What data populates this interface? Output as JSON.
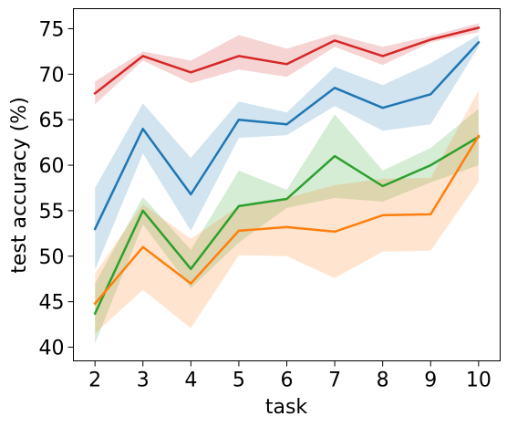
{
  "chart_data": {
    "type": "line",
    "title": "",
    "xlabel": "task",
    "ylabel": "test accuracy (%)",
    "x": [
      2,
      3,
      4,
      5,
      6,
      7,
      8,
      9,
      10
    ],
    "xlim": [
      1.55,
      10.45
    ],
    "ylim": [
      38.5,
      77.2
    ],
    "yticks": [
      40,
      45,
      50,
      55,
      60,
      65,
      70,
      75
    ],
    "grid": false,
    "legend": "none",
    "series": [
      {
        "color": "#d62728",
        "values": [
          67.9,
          72.0,
          70.2,
          72.0,
          71.1,
          73.7,
          72.0,
          73.8,
          75.1
        ],
        "lower": [
          66.7,
          71.5,
          69.0,
          70.5,
          69.7,
          73.0,
          71.0,
          73.5,
          74.6
        ],
        "upper": [
          69.2,
          72.5,
          71.5,
          74.3,
          72.8,
          74.4,
          73.0,
          74.2,
          75.6
        ]
      },
      {
        "color": "#1f77b4",
        "values": [
          53.0,
          64.0,
          56.8,
          65.0,
          64.5,
          68.5,
          66.3,
          67.8,
          73.5
        ],
        "lower": [
          48.5,
          61.3,
          52.8,
          63.0,
          63.3,
          66.5,
          63.8,
          64.5,
          73.0
        ],
        "upper": [
          57.5,
          66.8,
          60.8,
          67.0,
          65.8,
          70.8,
          68.8,
          71.2,
          74.3
        ]
      },
      {
        "color": "#2ca02c",
        "values": [
          43.7,
          55.0,
          48.6,
          55.5,
          56.3,
          61.0,
          57.7,
          60.0,
          63.1
        ],
        "lower": [
          40.4,
          53.5,
          46.5,
          51.5,
          55.3,
          56.4,
          56.0,
          58.1,
          60.0
        ],
        "upper": [
          47.0,
          56.5,
          50.7,
          59.4,
          57.3,
          65.6,
          59.4,
          61.9,
          66.2
        ]
      },
      {
        "color": "#ff7f0e",
        "values": [
          44.8,
          51.0,
          47.0,
          52.8,
          53.2,
          52.7,
          54.5,
          54.6,
          63.2
        ],
        "lower": [
          41.5,
          46.3,
          42.1,
          50.1,
          50.0,
          47.6,
          50.5,
          50.6,
          58.2
        ],
        "upper": [
          48.1,
          55.7,
          51.9,
          55.5,
          56.4,
          57.8,
          58.5,
          58.6,
          68.2
        ]
      }
    ]
  }
}
